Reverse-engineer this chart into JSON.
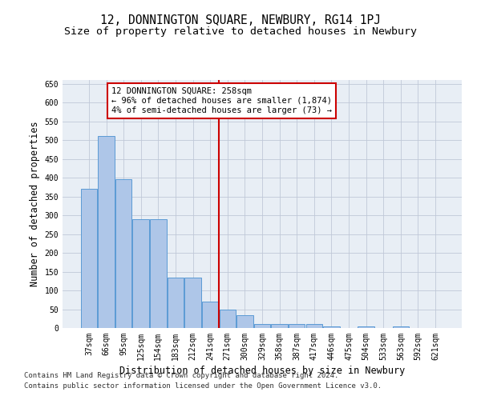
{
  "title": "12, DONNINGTON SQUARE, NEWBURY, RG14 1PJ",
  "subtitle": "Size of property relative to detached houses in Newbury",
  "xlabel": "Distribution of detached houses by size in Newbury",
  "ylabel": "Number of detached properties",
  "categories": [
    "37sqm",
    "66sqm",
    "95sqm",
    "125sqm",
    "154sqm",
    "183sqm",
    "212sqm",
    "241sqm",
    "271sqm",
    "300sqm",
    "329sqm",
    "358sqm",
    "387sqm",
    "417sqm",
    "446sqm",
    "475sqm",
    "504sqm",
    "533sqm",
    "563sqm",
    "592sqm",
    "621sqm"
  ],
  "values": [
    370,
    510,
    395,
    290,
    290,
    135,
    135,
    70,
    50,
    35,
    10,
    10,
    10,
    10,
    5,
    0,
    5,
    0,
    5,
    0,
    0
  ],
  "bar_color": "#aec6e8",
  "bar_edge_color": "#5b9bd5",
  "vline_x_index": 8,
  "vline_color": "#cc0000",
  "annotation_text": "12 DONNINGTON SQUARE: 258sqm\n← 96% of detached houses are smaller (1,874)\n4% of semi-detached houses are larger (73) →",
  "annotation_box_color": "#ffffff",
  "annotation_box_edge_color": "#cc0000",
  "ylim": [
    0,
    660
  ],
  "yticks": [
    0,
    50,
    100,
    150,
    200,
    250,
    300,
    350,
    400,
    450,
    500,
    550,
    600,
    650
  ],
  "background_color": "#e8eef5",
  "footer_line1": "Contains HM Land Registry data © Crown copyright and database right 2024.",
  "footer_line2": "Contains public sector information licensed under the Open Government Licence v3.0.",
  "title_fontsize": 10.5,
  "subtitle_fontsize": 9.5,
  "xlabel_fontsize": 8.5,
  "ylabel_fontsize": 8.5,
  "tick_fontsize": 7,
  "annotation_fontsize": 7.5
}
